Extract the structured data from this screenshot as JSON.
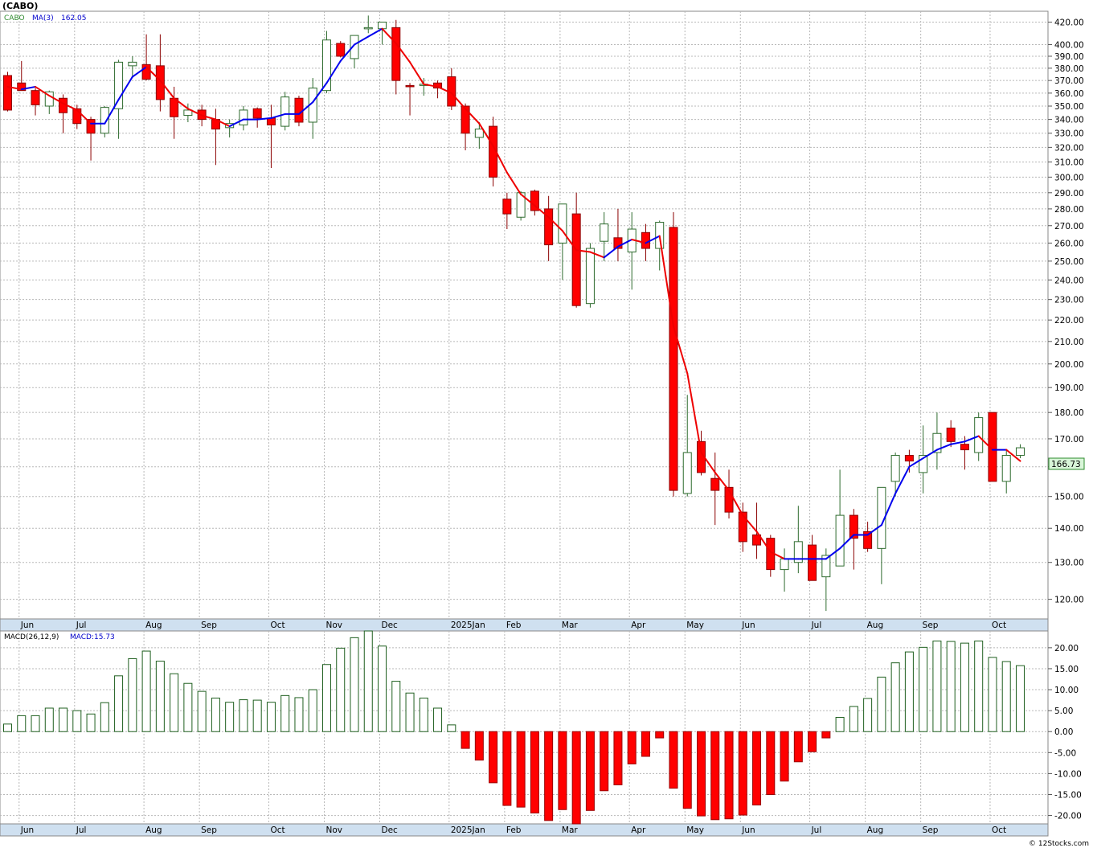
{
  "title": "(CABO)",
  "footer": "© 12Stocks.com",
  "colors": {
    "up_body": "#ffffff",
    "up_stroke": "#2e6b2e",
    "down_body": "#ff0000",
    "down_stroke": "#8b0000",
    "wick": "#2e6b2e",
    "ma_up": "#0000ee",
    "ma_down": "#ee0000",
    "macd_pos_fill": "#ffffff",
    "macd_pos_stroke": "#1f5f1f",
    "macd_neg_fill": "#ff0000",
    "macd_neg_stroke": "#990000",
    "grid": "#b8b8b8",
    "axis_band": "#cfe0f0",
    "last_price_box": "#d8f5d8",
    "legend_ticker": "#2e8b2e",
    "legend_ma": "#0000cc"
  },
  "price_panel": {
    "legend": {
      "ticker": "CABO",
      "ma_label": "MA(3)",
      "ma_value": "162.05"
    },
    "last_price": "166.73",
    "y_ticks": [
      "420.00",
      "400.00",
      "390.00",
      "380.00",
      "370.00",
      "360.00",
      "350.00",
      "340.00",
      "330.00",
      "320.00",
      "310.00",
      "300.00",
      "290.00",
      "280.00",
      "270.00",
      "260.00",
      "250.00",
      "240.00",
      "230.00",
      "220.00",
      "210.00",
      "200.00",
      "190.00",
      "180.00",
      "170.00",
      "160.00",
      "150.00",
      "140.00",
      "130.00",
      "120.00"
    ]
  },
  "macd_panel": {
    "legend": {
      "label": "MACD(26,12,9)",
      "value_label": "MACD:15.73"
    },
    "y_ticks": [
      "20.00",
      "15.00",
      "10.00",
      "5.00",
      "0.00",
      "-5.00",
      "-10.00",
      "-15.00",
      "-20.00"
    ]
  },
  "x_axis": {
    "months": [
      "Jun",
      "Jul",
      "Aug",
      "Sep",
      "Oct",
      "Nov",
      "Dec",
      "2025Jan",
      "Feb",
      "Mar",
      "Apr",
      "May",
      "Jun",
      "Jul",
      "Aug",
      "Sep",
      "Oct"
    ]
  },
  "chart_data": [
    {
      "type": "candlestick",
      "title": "(CABO)",
      "y_scale": "log",
      "ylim": [
        115,
        430
      ],
      "x_unit": "week",
      "series": [
        {
          "name": "CABO",
          "ohlc": [
            [
              374,
              377,
              346,
              347
            ],
            [
              368,
              386,
              365,
              362
            ],
            [
              362,
              364,
              343,
              351
            ],
            [
              350,
              362,
              344,
              361
            ],
            [
              356,
              359,
              330,
              345
            ],
            [
              348,
              351,
              333,
              337
            ],
            [
              340,
              342,
              311,
              330
            ],
            [
              330,
              350,
              327,
              349
            ],
            [
              348,
              387,
              326,
              385
            ],
            [
              382,
              390,
              372,
              385
            ],
            [
              383,
              409,
              370,
              371
            ],
            [
              382,
              409,
              346,
              355
            ],
            [
              356,
              365,
              326,
              342
            ],
            [
              343,
              352,
              338,
              347
            ],
            [
              347,
              351,
              335,
              340
            ],
            [
              340,
              348,
              308,
              333
            ],
            [
              334,
              340,
              327,
              337
            ],
            [
              336,
              350,
              332,
              347
            ],
            [
              348,
              349,
              334,
              341
            ],
            [
              341,
              351,
              306,
              336
            ],
            [
              335,
              361,
              332,
              357
            ],
            [
              356,
              358,
              335,
              338
            ],
            [
              338,
              372,
              326,
              364
            ],
            [
              362,
              412,
              360,
              404
            ],
            [
              401,
              403,
              389,
              390
            ],
            [
              388,
              408,
              380,
              408
            ],
            [
              415,
              426,
              410,
              415
            ],
            [
              414,
              420,
              400,
              420
            ],
            [
              415,
              422,
              359,
              370
            ],
            [
              366,
              368,
              343,
              365
            ],
            [
              366,
              372,
              358,
              367
            ],
            [
              368,
              370,
              356,
              364
            ],
            [
              373,
              380,
              347,
              350
            ],
            [
              350,
              352,
              318,
              330
            ],
            [
              327,
              338,
              319,
              333
            ],
            [
              335,
              342,
              294,
              300
            ],
            [
              286,
              290,
              268,
              277
            ],
            [
              275,
              291,
              273,
              290
            ],
            [
              291,
              292,
              276,
              279
            ],
            [
              280,
              288,
              250,
              259
            ],
            [
              260,
              283,
              240,
              283
            ],
            [
              277,
              290,
              226,
              227
            ],
            [
              228,
              260,
              226,
              257
            ],
            [
              261,
              278,
              250,
              271
            ],
            [
              263,
              280,
              250,
              257
            ],
            [
              255,
              278,
              235,
              268
            ],
            [
              266,
              271,
              250,
              257
            ],
            [
              257,
              273,
              245,
              272
            ],
            [
              269,
              278,
              150,
              152
            ],
            [
              151,
              187,
              150,
              165
            ],
            [
              169,
              173,
              157,
              158
            ],
            [
              156,
              165,
              141,
              152
            ],
            [
              153,
              159,
              143,
              145
            ],
            [
              145,
              148,
              133,
              136
            ],
            [
              138,
              148,
              131,
              135
            ],
            [
              137,
              138,
              126,
              128
            ],
            [
              128,
              134,
              122,
              131
            ],
            [
              130,
              147,
              127,
              136
            ],
            [
              135,
              138,
              125,
              125
            ],
            [
              126,
              134,
              117,
              132
            ],
            [
              129,
              159,
              129,
              144
            ],
            [
              144,
              146,
              128,
              137
            ],
            [
              139,
              142,
              133,
              134
            ],
            [
              134,
              151,
              124,
              153
            ],
            [
              155,
              165,
              150,
              164
            ],
            [
              164,
              166,
              158,
              162
            ],
            [
              158,
              175,
              151,
              164
            ],
            [
              165,
              180,
              159,
              172
            ],
            [
              174,
              177,
              167,
              169
            ],
            [
              168,
              171,
              159,
              166
            ],
            [
              165,
              180,
              162,
              178
            ],
            [
              180,
              180,
              155,
              155
            ],
            [
              155,
              166,
              151,
              164
            ],
            [
              164,
              168,
              163,
              166.73
            ]
          ]
        },
        {
          "name": "MA(3)",
          "values": [
            365,
            363,
            365,
            358,
            352,
            347,
            337,
            337,
            355,
            373,
            381,
            370,
            356,
            348,
            343,
            340,
            335,
            340,
            340,
            341,
            344,
            344,
            353,
            368,
            386,
            400,
            407,
            414,
            401,
            385,
            367,
            365,
            360,
            348,
            337,
            321,
            303,
            289,
            282,
            275,
            267,
            256,
            255,
            252,
            258,
            262,
            260,
            264,
            217,
            196,
            165,
            158,
            152,
            144,
            139,
            133,
            131,
            131,
            131,
            131,
            134,
            138,
            138,
            141,
            151,
            160,
            163,
            166,
            168,
            169,
            171,
            166,
            166,
            162
          ]
        }
      ]
    },
    {
      "type": "bar",
      "title": "MACD(26,12,9)",
      "ylim": [
        -22,
        24
      ],
      "x_unit": "week",
      "series": [
        {
          "name": "MACD",
          "values": [
            1.8,
            3.8,
            3.8,
            5.6,
            5.6,
            5.0,
            4.2,
            6.9,
            13.3,
            17.4,
            19.2,
            16.8,
            13.8,
            11.5,
            9.6,
            8.0,
            7.0,
            7.6,
            7.5,
            7.0,
            8.6,
            8.1,
            10.0,
            16.0,
            19.9,
            22.4,
            24.0,
            20.4,
            12.0,
            9.2,
            8.0,
            5.6,
            1.6,
            -4.0,
            -6.8,
            -12.2,
            -17.6,
            -18.0,
            -19.4,
            -21.2,
            -18.6,
            -22.0,
            -18.8,
            -14.1,
            -12.7,
            -7.7,
            -5.9,
            -1.5,
            -13.5,
            -18.3,
            -20.1,
            -21.0,
            -20.8,
            -19.9,
            -17.5,
            -15.0,
            -11.8,
            -7.2,
            -4.8,
            -1.5,
            3.4,
            6.0,
            7.9,
            13.0,
            16.4,
            19.0,
            20.1,
            21.6,
            21.5,
            21.1,
            21.6,
            17.7,
            16.7,
            15.73
          ]
        }
      ]
    }
  ]
}
